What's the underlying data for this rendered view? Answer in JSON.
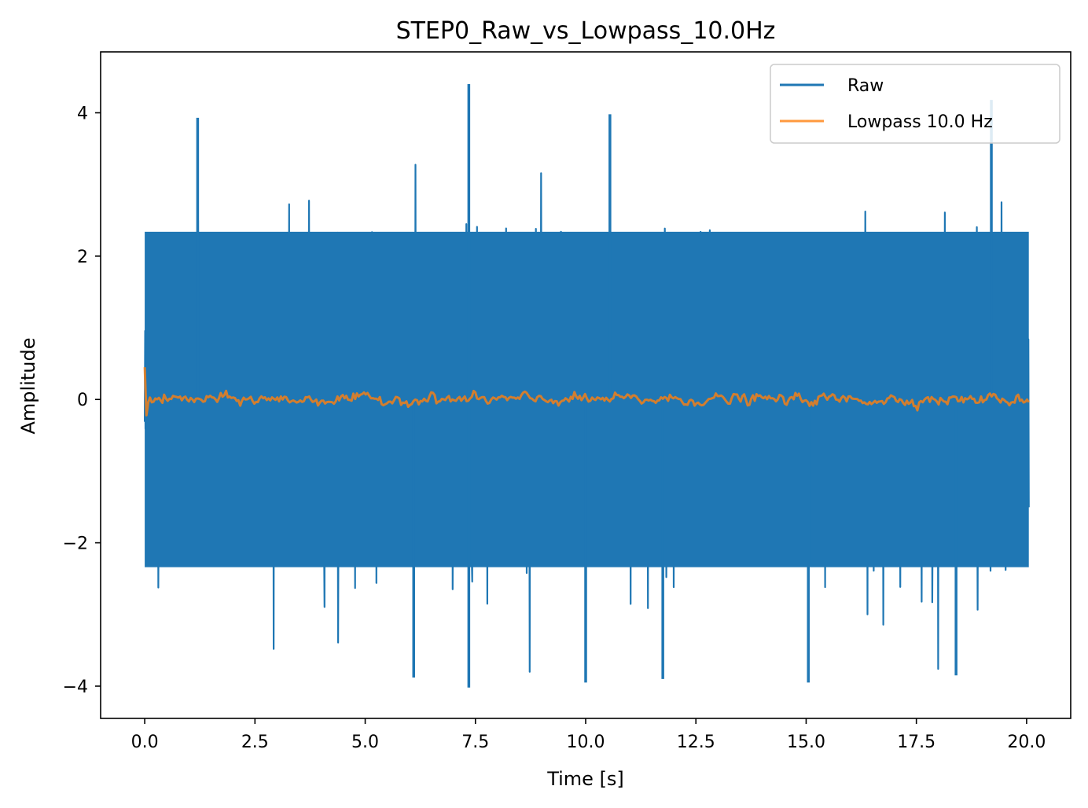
{
  "chart_data": {
    "type": "line",
    "title": "STEP0_Raw_vs_Lowpass_10.0Hz",
    "xlabel": "Time [s]",
    "ylabel": "Amplitude",
    "xlim": [
      -1.0,
      21.0
    ],
    "ylim": [
      -4.45,
      4.85
    ],
    "xticks": [
      0.0,
      2.5,
      5.0,
      7.5,
      10.0,
      12.5,
      15.0,
      17.5,
      20.0
    ],
    "xtick_labels": [
      "0.0",
      "2.5",
      "5.0",
      "7.5",
      "10.0",
      "12.5",
      "15.0",
      "17.5",
      "20.0"
    ],
    "yticks": [
      -4,
      -2,
      0,
      2,
      4
    ],
    "ytick_labels": [
      "−4",
      "−2",
      "0",
      "2",
      "4"
    ],
    "grid": false,
    "legend_position": "top-right",
    "series": [
      {
        "name": "Raw",
        "color": "#1f77b4",
        "x_range": [
          0.0,
          20.05
        ],
        "approx_envelope": {
          "typical_min": -2.6,
          "typical_max": 2.6,
          "peak_max": 4.4,
          "peak_min": -4.0
        },
        "notable_peaks": [
          {
            "x": 7.35,
            "y": 4.4
          },
          {
            "x": 19.2,
            "y": 4.18
          },
          {
            "x": 10.55,
            "y": 3.98
          },
          {
            "x": 1.2,
            "y": 3.93
          },
          {
            "x": 7.35,
            "y": -4.02
          },
          {
            "x": 10.0,
            "y": -3.95
          },
          {
            "x": 6.1,
            "y": -3.88
          },
          {
            "x": 11.75,
            "y": -3.9
          },
          {
            "x": 15.05,
            "y": -3.95
          },
          {
            "x": 18.4,
            "y": -3.85
          }
        ]
      },
      {
        "name": "Lowpass 10.0 Hz",
        "color": "#ff7f0e",
        "x_range": [
          0.0,
          20.05
        ],
        "approx_envelope": {
          "typical_min": -0.2,
          "typical_max": 0.15
        },
        "notable_points": [
          {
            "x": 0.02,
            "y": 0.45
          },
          {
            "x": 0.05,
            "y": -0.22
          }
        ]
      }
    ]
  }
}
